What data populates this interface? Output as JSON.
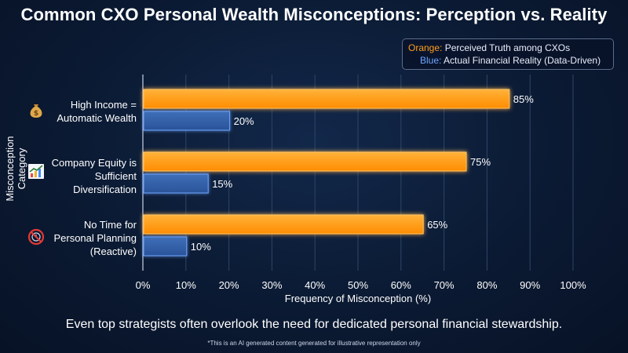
{
  "title": "Common CXO Personal Wealth Misconceptions: Perception vs. Reality",
  "legend": {
    "orange_label": "Orange:",
    "orange_text": "Perceived Truth among CXOs",
    "blue_label": "Blue:",
    "blue_text": "Actual Financial Reality (Data-Driven)"
  },
  "footer": "Even top strategists often overlook the need for dedicated personal financial stewardship.",
  "disclaimer": "*This is an AI generated content generated for illustrative representation only",
  "icons": [
    "money-bag-icon",
    "growth-chart-icon",
    "no-clock-icon"
  ],
  "colors": {
    "orange": "#ff9f1a",
    "blue": "#3b6fc4",
    "background": "#0b1a33"
  },
  "chart_data": {
    "type": "bar",
    "orientation": "horizontal",
    "title": "Common CXO Personal Wealth Misconceptions: Perception vs. Reality",
    "xlabel": "Frequency of Misconception (%)",
    "ylabel": "Misconception Category",
    "xlim": [
      0,
      100
    ],
    "xticks": [
      "0%",
      "10%",
      "20%",
      "30%",
      "40%",
      "50%",
      "60%",
      "70%",
      "80%",
      "90%",
      "100%"
    ],
    "categories": [
      [
        "High Income =",
        "Automatic Wealth"
      ],
      [
        "Company Equity is",
        "Sufficient",
        "Diversification"
      ],
      [
        "No Time for",
        "Personal Planning",
        "(Reactive)"
      ]
    ],
    "series": [
      {
        "name": "Perceived Truth among CXOs",
        "values": [
          85,
          75,
          65
        ],
        "labels": [
          "85%",
          "75%",
          "65%"
        ]
      },
      {
        "name": "Actual Financial Reality (Data-Driven)",
        "values": [
          20,
          15,
          10
        ],
        "labels": [
          "20%",
          "15%",
          "10%"
        ]
      }
    ],
    "grid": true,
    "legend_position": "top-right"
  }
}
